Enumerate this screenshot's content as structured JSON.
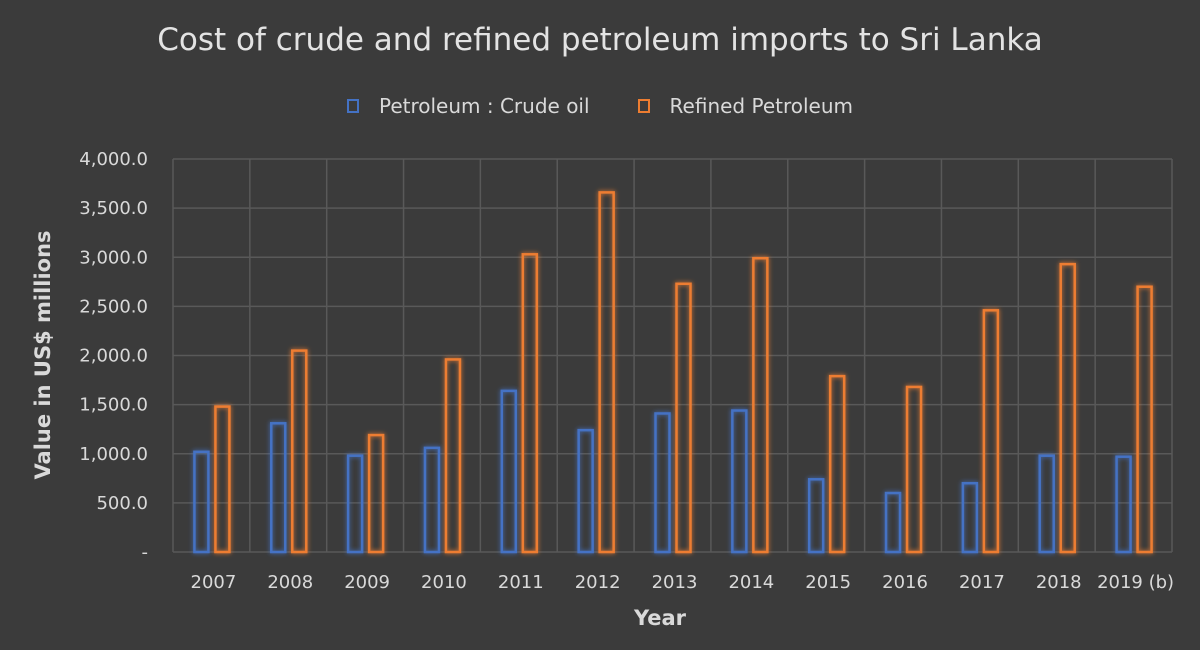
{
  "chart_data": {
    "type": "bar",
    "title": "Cost of crude and refined petroleum imports to Sri Lanka",
    "xlabel": "Year",
    "ylabel": "Value in US$ millions",
    "ylim": [
      0,
      4000
    ],
    "y_ticks": [
      0,
      500,
      1000,
      1500,
      2000,
      2500,
      3000,
      3500,
      4000
    ],
    "y_tick_labels": [
      "-",
      "500.0",
      "1,000.0",
      "1,500.0",
      "2,000.0",
      "2,500.0",
      "3,000.0",
      "3,500.0",
      "4,000.0"
    ],
    "grid": true,
    "legend_position": "top",
    "categories": [
      "2007",
      "2008",
      "2009",
      "2010",
      "2011",
      "2012",
      "2013",
      "2014",
      "2015",
      "2016",
      "2017",
      "2018",
      "2019 (b)"
    ],
    "series": [
      {
        "name": "Petroleum : Crude oil",
        "color": "#4472c4",
        "values": [
          1020,
          1310,
          980,
          1060,
          1640,
          1240,
          1410,
          1440,
          740,
          600,
          700,
          980,
          970
        ]
      },
      {
        "name": "Refined Petroleum",
        "color": "#ed7d31",
        "values": [
          1480,
          2050,
          1190,
          1960,
          3030,
          3660,
          2730,
          2990,
          1790,
          1680,
          2460,
          2930,
          2700
        ]
      }
    ]
  }
}
